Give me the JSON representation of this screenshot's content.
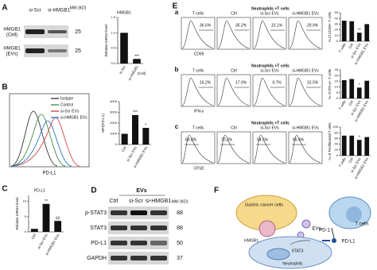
{
  "panels": {
    "A": {
      "label": "A",
      "blot": {
        "lanes": [
          "si-Scr",
          "si-HMGB1"
        ],
        "mw_header": "MW (KD)",
        "rows": [
          {
            "name": "HMGB1",
            "sub": "(Cell)",
            "mw": 25
          },
          {
            "name": "HMGB1",
            "sub": "(EVs)",
            "mw": 25
          }
        ]
      },
      "chart": {
        "type": "bar",
        "title": "HMGB1",
        "y_label": "Relative mRNA level",
        "categories": [
          "si-Scr",
          "si-HMGB1"
        ],
        "category_note": "(Cell)",
        "values": [
          1.0,
          0.15
        ],
        "color": "#111111",
        "ylim": [
          0,
          1.5
        ],
        "yticks": [
          {
            "value": 0,
            "label": "0.0"
          },
          {
            "value": 0.5,
            "label": "0.5"
          },
          {
            "value": 1,
            "label": "1.0"
          },
          {
            "value": 1.5,
            "label": "1.5"
          }
        ],
        "annotations": [
          null,
          "***"
        ]
      }
    },
    "B": {
      "label": "B",
      "histogram": {
        "legend": [
          {
            "name": "Isotype",
            "color": "#222222"
          },
          {
            "name": "Control",
            "color": "#2e7d32"
          },
          {
            "name": "si-Scr EVs",
            "color": "#d32f2f"
          },
          {
            "name": "si-HMGB1 EVs",
            "color": "#1565c0"
          }
        ],
        "x_label": "PD-L1"
      },
      "chart": {
        "type": "bar",
        "y_label": "MFI(PD-L1)",
        "categories": [
          "Ctrl",
          "si-Scr EVs",
          "si-HMGB1 EVs"
        ],
        "values": [
          1000,
          2750,
          1550
        ],
        "color": "#111111",
        "ylim": [
          0,
          4000
        ],
        "yticks": [
          0,
          1000,
          2000,
          3000,
          4000
        ],
        "annotations": [
          null,
          "***",
          "*"
        ]
      }
    },
    "C": {
      "label": "C",
      "chart": {
        "type": "bar",
        "title": "PD-L1",
        "y_label": "Relative mRNA level",
        "categories": [
          "Ctrl",
          "si-Scr EVs",
          "si-HMGB1 EVs"
        ],
        "values": [
          1,
          9.2,
          3.6
        ],
        "color": "#111111",
        "ylim": [
          0,
          12
        ],
        "yticks": [
          0,
          5,
          10
        ],
        "annotations": [
          null,
          "**",
          "##"
        ]
      }
    },
    "D": {
      "label": "D",
      "group": "EVs",
      "lanes": [
        "Ctrl",
        "si-Scr",
        "si-HMGB1"
      ],
      "mw_header": "MW (KD)",
      "rows": [
        {
          "name": "p-STAT3",
          "mw": 88
        },
        {
          "name": "STAT3",
          "mw": 88
        },
        {
          "name": "PD-L1",
          "mw": 50
        },
        {
          "name": "GAPDH",
          "mw": 37
        }
      ]
    },
    "E": {
      "label": "E",
      "group_header": "Neutrophils +T cells",
      "columns": [
        "T cells",
        "Ctrl",
        "si-Scr EVs",
        "si-HMGB1 EVs"
      ],
      "rows": [
        {
          "label": "a",
          "x_label": "CD69",
          "percents": [
            "36.6%",
            "35.2%",
            "15.1%",
            "29.9%"
          ],
          "chart": {
            "type": "bar",
            "y_label": "% of CD69+ T cells",
            "categories": [
              "T cells",
              "Ctrl",
              "si-Scr EVs",
              "si-HMGB1 EVs"
            ],
            "values": [
              36,
              35,
              15,
              30
            ],
            "color": "#111111",
            "ylim": [
              0,
              50
            ],
            "yticks": [
              0,
              10,
              20,
              30,
              40,
              50
            ],
            "annotations": [
              null,
              null,
              "**",
              null
            ]
          }
        },
        {
          "label": "b",
          "x_label": "IFN-γ",
          "percents": [
            "16.2%",
            "17.0%",
            "9.7%",
            "15.5%"
          ],
          "chart": {
            "type": "bar",
            "y_label": "% of IFN-γ+ T cells",
            "categories": [
              "T cells",
              "Ctrl",
              "si-Scr EVs",
              "si-HMGB1 EVs"
            ],
            "values": [
              16,
              17,
              9.5,
              15.5
            ],
            "color": "#111111",
            "ylim": [
              0,
              25
            ],
            "yticks": [
              0,
              5,
              10,
              15,
              20,
              25
            ],
            "annotations": [
              null,
              null,
              "*",
              null
            ]
          }
        },
        {
          "label": "c",
          "x_label": "CFSE",
          "percents": [
            "69.8%",
            "70.2%",
            "54.5%",
            "65.4%"
          ],
          "chart": {
            "type": "bar",
            "y_label": "% of Proliferated T cells",
            "categories": [
              "T cells",
              "Ctrl",
              "si-Scr EVs",
              "si-HMGB1 EVs"
            ],
            "values": [
              70,
              70,
              55,
              65
            ],
            "color": "#111111",
            "ylim": [
              0,
              100
            ],
            "yticks": [
              0,
              20,
              40,
              60,
              80,
              100
            ],
            "annotations": [
              null,
              null,
              "*",
              null
            ]
          }
        }
      ]
    },
    "F": {
      "label": "F",
      "gastric": "Gastric cancer cells",
      "evs": "EVs",
      "hmgb1": "HMGB1",
      "stat3": "STAT3",
      "pdl1": "PD-L1",
      "pd1": "PD-1",
      "tcells": "T cells",
      "neutrophils": "Neutrophils"
    }
  }
}
